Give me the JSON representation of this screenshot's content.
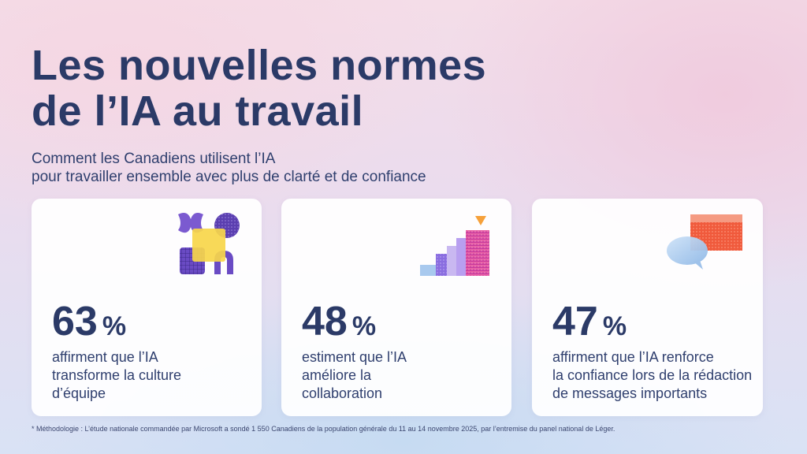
{
  "title": {
    "line1": "Les nouvelles normes",
    "line2": "de l’IA au travail"
  },
  "subtitle": {
    "line1": "Comment les Canadiens utilisent l’IA",
    "line2": "pour travailler ensemble avec plus de clarté et de confiance"
  },
  "cards": [
    {
      "value": "63",
      "unit": "%",
      "lines": [
        "affirment que l’IA",
        "transforme la culture",
        "d’équipe"
      ],
      "icon": "abstract-shapes-icon"
    },
    {
      "value": "48",
      "unit": "%",
      "lines": [
        "estiment que l’IA",
        "améliore la",
        "collaboration"
      ],
      "icon": "rising-steps-icon"
    },
    {
      "value": "47",
      "unit": "%",
      "lines": [
        "affirment que l’IA renforce",
        "la confiance lors de la rédaction",
        "de messages importants"
      ],
      "icon": "chat-bubbles-icon"
    }
  ],
  "footnote": "* Méthodologie : L’étude nationale commandée par Microsoft a sondé 1 550 Canadiens de la population générale du 11 au 14 novembre 2025, par l’entremise du panel national de Léger."
}
